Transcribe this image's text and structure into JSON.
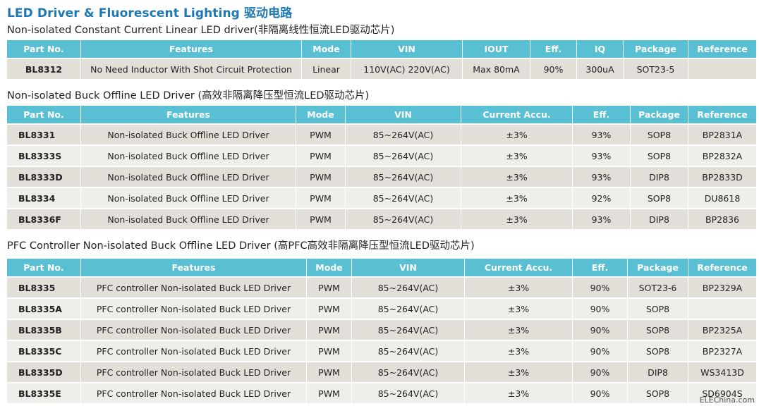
{
  "page_title": "LED Driver & Fluorescent Lighting 驱动电路",
  "sections": [
    {
      "title": "Non-isolated Constant Current Linear LED driver(非隔离线性恒流LED驱动芯片)",
      "columns": [
        "Part No.",
        "Features",
        "Mode",
        "VIN",
        "IOUT",
        "Eff.",
        "IQ",
        "Package",
        "Reference"
      ],
      "rows": [
        [
          "BL8312",
          "No Need Inductor With Shot Circuit Protection",
          "Linear",
          "110V(AC) 220V(AC)",
          "Max 80mA",
          "90%",
          "300uA",
          "SOT23-5",
          ""
        ]
      ]
    },
    {
      "title": "Non-isolated Buck Offline LED Driver (高效非隔离降压型恒流LED驱动芯片)",
      "columns": [
        "Part No.",
        "Features",
        "Mode",
        "VIN",
        "Current Accu.",
        "Eff.",
        "Package",
        "Reference"
      ],
      "rows": [
        [
          "BL8331",
          "Non-isolated Buck Offline LED Driver",
          "PWM",
          "85~264V(AC)",
          "±3%",
          "93%",
          "SOP8",
          "BP2831A"
        ],
        [
          "BL8333S",
          "Non-isolated Buck Offline LED Driver",
          "PWM",
          "85~264V(AC)",
          "±3%",
          "93%",
          "SOP8",
          "BP2832A"
        ],
        [
          "BL8333D",
          "Non-isolated Buck Offline LED Driver",
          "PWM",
          "85~264V(AC)",
          "±3%",
          "93%",
          "DIP8",
          "BP2833D"
        ],
        [
          "BL8334",
          "Non-isolated Buck Offline LED Driver",
          "PWM",
          "85~264V(AC)",
          "±3%",
          "92%",
          "SOP8",
          "DU8618"
        ],
        [
          "BL8336F",
          "Non-isolated Buck Offline LED Driver",
          "PWM",
          "85~264V(AC)",
          "±3%",
          "93%",
          "DIP8",
          "BP2836"
        ]
      ]
    },
    {
      "title": "PFC Controller Non-isolated Buck Offline LED Driver (高PFC高效非隔离降压型恒流LED驱动芯片)",
      "columns": [
        "Part No.",
        "Features",
        "Mode",
        "VIN",
        "Current Accu.",
        "Eff.",
        "Package",
        "Reference"
      ],
      "rows": [
        [
          "BL8335",
          "PFC controller Non-isolated Buck LED Driver",
          "PWM",
          "85~264V(AC)",
          "±3%",
          "90%",
          "SOT23-6",
          "BP2329A"
        ],
        [
          "BL8335A",
          "PFC controller Non-isolated Buck LED Driver",
          "PWM",
          "85~264V(AC)",
          "±3%",
          "90%",
          "SOP8",
          ""
        ],
        [
          "BL8335B",
          "PFC controller Non-isolated Buck LED Driver",
          "PWM",
          "85~264V(AC)",
          "±3%",
          "90%",
          "SOP8",
          "BP2325A"
        ],
        [
          "BL8335C",
          "PFC controller Non-isolated Buck LED Driver",
          "PWM",
          "85~264V(AC)",
          "±3%",
          "90%",
          "SOP8",
          "BP2327A"
        ],
        [
          "BL8335D",
          "PFC controller Non-isolated Buck LED Driver",
          "PWM",
          "85~264V(AC)",
          "±3%",
          "90%",
          "DIP8",
          "WS3413D"
        ],
        [
          "BL8335E",
          "PFC controller Non-isolated Buck LED Driver",
          "PWM",
          "85~264V(AC)",
          "±3%",
          "90%",
          "SOP8",
          "SD6904S"
        ]
      ]
    }
  ],
  "watermark": "ELEChina.com",
  "colors": {
    "title": "#1e78b4",
    "header_bg": "#59bfd3",
    "row_odd": "#e2dfd9",
    "row_even": "#efeeea"
  }
}
